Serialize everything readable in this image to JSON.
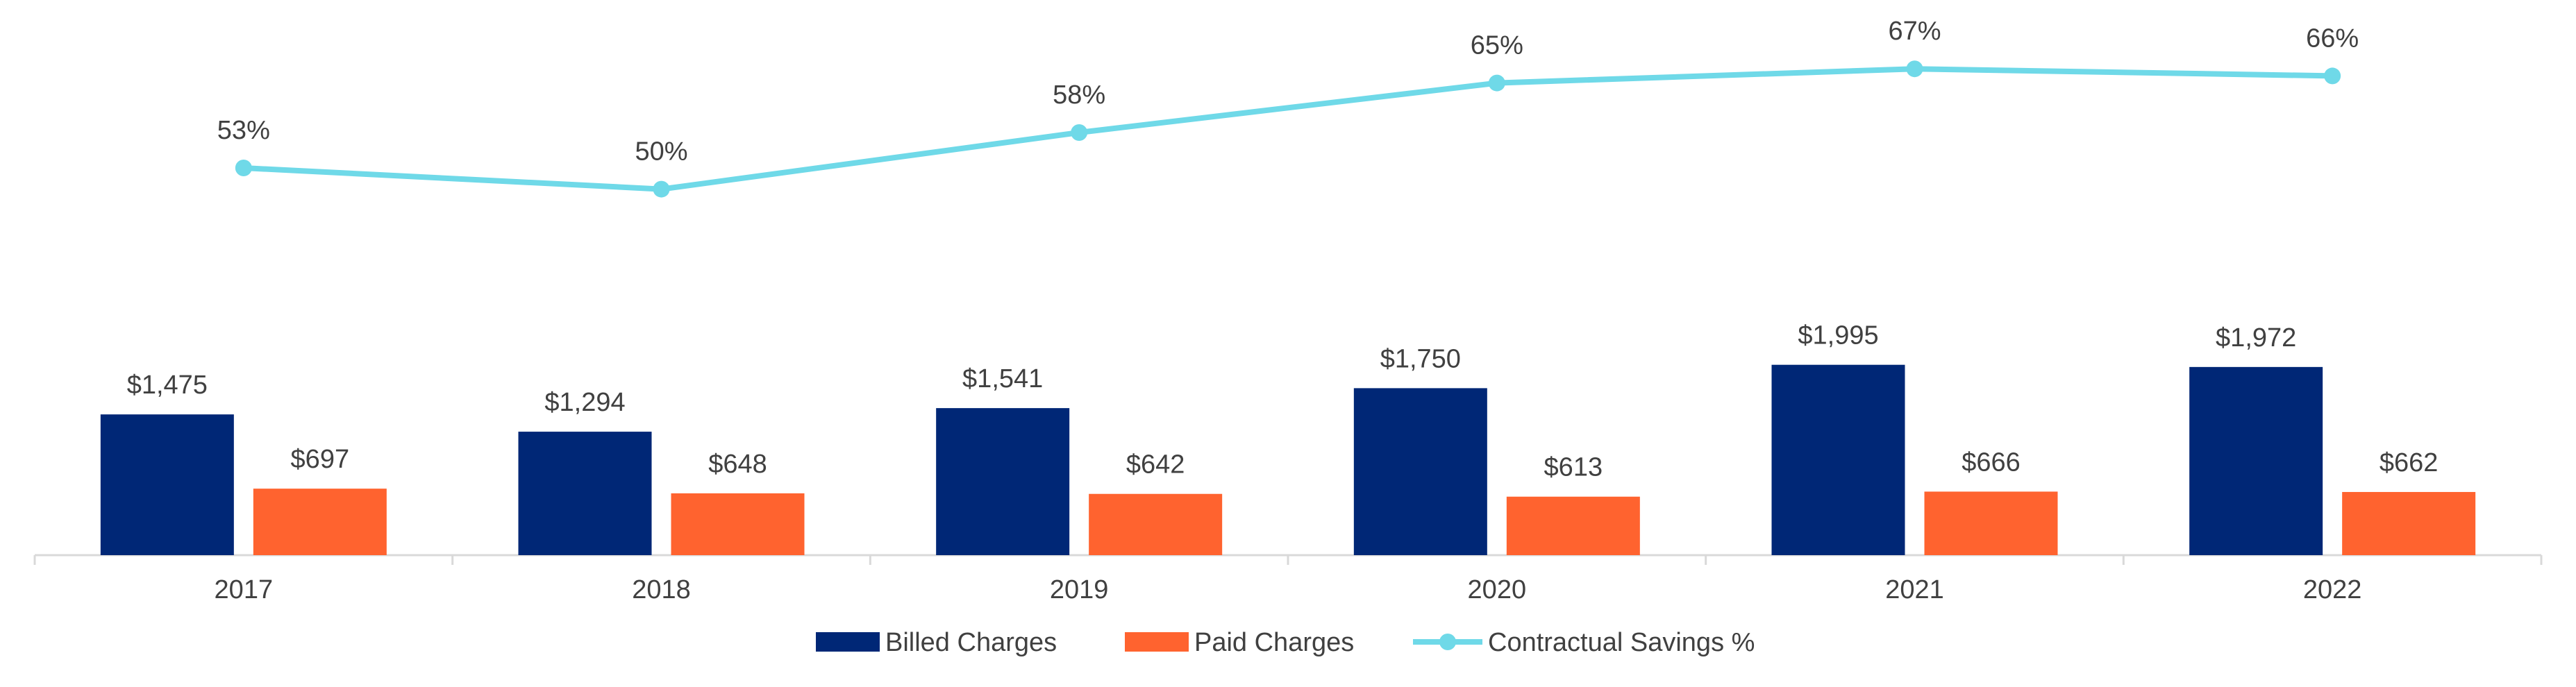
{
  "chart_data": {
    "type": "bar",
    "categories": [
      "2017",
      "2018",
      "2019",
      "2020",
      "2021",
      "2022"
    ],
    "series": [
      {
        "name": "Billed Charges",
        "type": "bar",
        "color": "#002776",
        "values": [
          1475,
          1294,
          1541,
          1750,
          1995,
          1972
        ],
        "labels": [
          "$1,475",
          "$1,294",
          "$1,541",
          "$1,750",
          "$1,995",
          "$1,972"
        ]
      },
      {
        "name": "Paid Charges",
        "type": "bar",
        "color": "#FF632F",
        "values": [
          697,
          648,
          642,
          613,
          666,
          662
        ],
        "labels": [
          "$697",
          "$648",
          "$642",
          "$613",
          "$666",
          "$662"
        ]
      },
      {
        "name": "Contractual Savings %",
        "type": "line",
        "color": "#6FD9E8",
        "values": [
          53,
          50,
          58,
          65,
          67,
          66
        ],
        "labels": [
          "53%",
          "50%",
          "58%",
          "65%",
          "67%",
          "66%"
        ]
      }
    ],
    "legend": "bottom",
    "grid": false
  }
}
